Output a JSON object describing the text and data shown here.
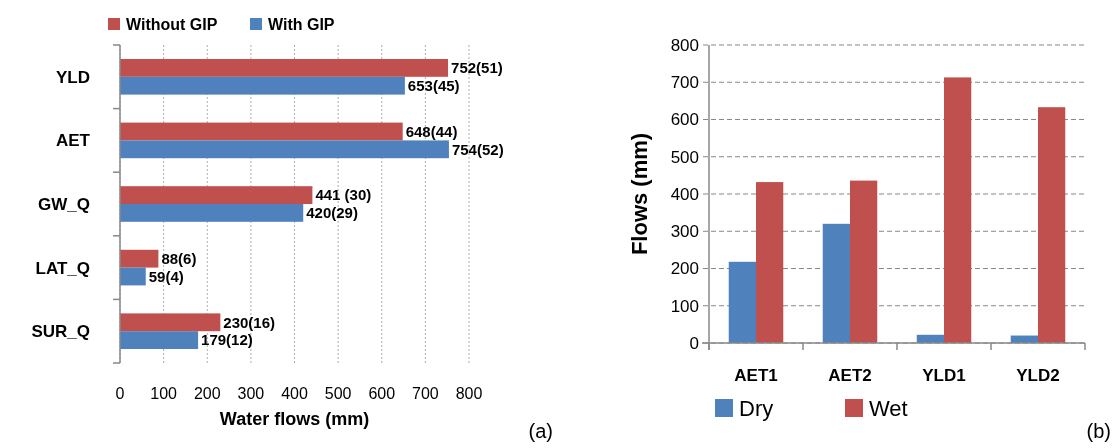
{
  "chart_data": [
    {
      "type": "bar",
      "orientation": "horizontal",
      "categories": [
        "YLD",
        "AET",
        "GW_Q",
        "LAT_Q",
        "SUR_Q"
      ],
      "xlabel": "Water flows (mm)",
      "xlim": [
        0,
        800
      ],
      "xticks": [
        0,
        100,
        200,
        300,
        400,
        500,
        600,
        700,
        800
      ],
      "grid": "x",
      "legend": "top",
      "annotations": [
        "(a)"
      ],
      "series": [
        {
          "name": "Without GIP",
          "color": "#c0504d",
          "values": [
            752,
            648,
            441,
            88,
            230
          ],
          "value_labels": [
            "752(51)",
            "648(44)",
            "441 (30)",
            "88(6)",
            "230(16)"
          ]
        },
        {
          "name": "With GIP",
          "color": "#4f81bd",
          "values": [
            653,
            754,
            420,
            59,
            179
          ],
          "value_labels": [
            "653(45)",
            "754(52)",
            "420(29)",
            "59(4)",
            "179(12)"
          ]
        }
      ]
    },
    {
      "type": "bar",
      "categories": [
        "AET1",
        "AET2",
        "YLD1",
        "YLD2"
      ],
      "ylabel": "Flows (mm)",
      "ylim": [
        0,
        800
      ],
      "yticks": [
        0,
        100,
        200,
        300,
        400,
        500,
        600,
        700,
        800
      ],
      "grid": "y",
      "legend": "bottom",
      "annotations": [
        "(b)"
      ],
      "series": [
        {
          "name": "Dry",
          "color": "#4f81bd",
          "values": [
            218,
            320,
            22,
            20
          ]
        },
        {
          "name": "Wet",
          "color": "#c0504d",
          "values": [
            432,
            436,
            713,
            633
          ]
        }
      ]
    }
  ]
}
